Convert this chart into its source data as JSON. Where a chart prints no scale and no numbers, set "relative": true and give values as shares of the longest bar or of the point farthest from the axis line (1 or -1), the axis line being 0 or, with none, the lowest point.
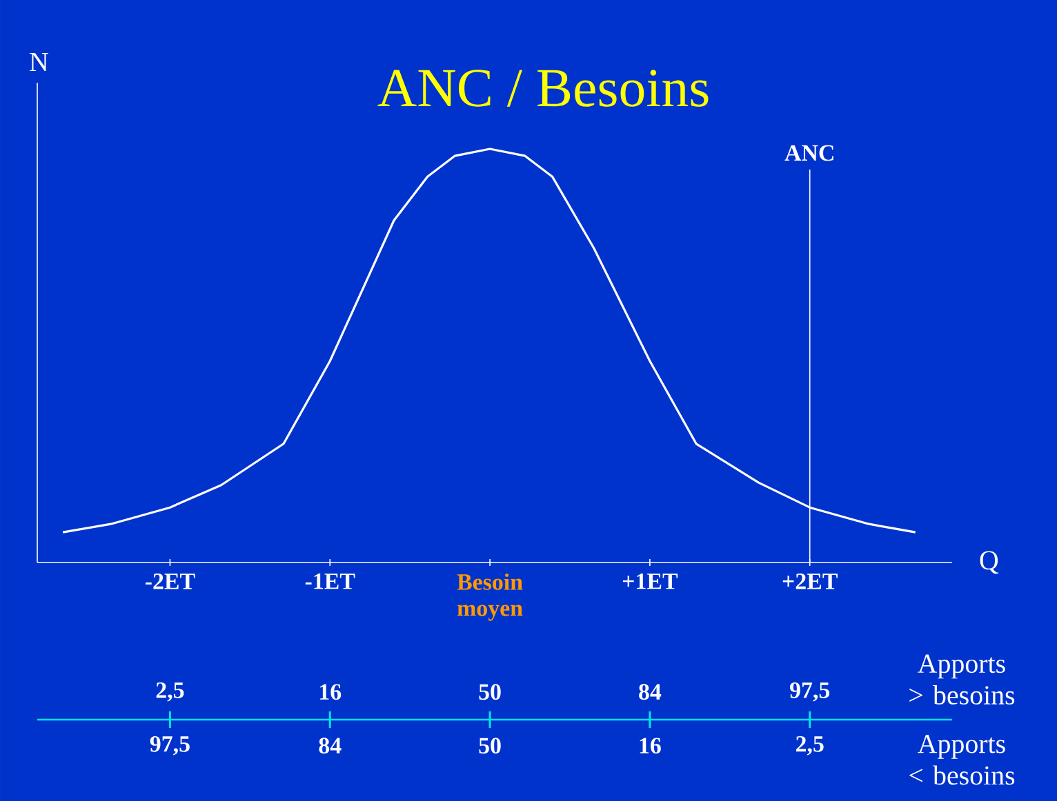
{
  "chart_data": {
    "type": "line",
    "title": "ANC / Besoins",
    "xlabel": "Q",
    "ylabel": "N",
    "relative": true,
    "x": [
      -2.67,
      -2.37,
      -2,
      -1.68,
      -1.29,
      -1,
      -0.6,
      -0.39,
      -0.22,
      0,
      0.22,
      0.39,
      0.65,
      1,
      1.29,
      1.68,
      2,
      2.37,
      2.66
    ],
    "series": [
      {
        "color": "#ffffff",
        "values": [
          0.073,
          0.093,
          0.133,
          0.187,
          0.287,
          0.487,
          0.827,
          0.933,
          0.983,
          1,
          0.983,
          0.933,
          0.76,
          0.487,
          0.287,
          0.193,
          0.133,
          0.093,
          0.073
        ]
      }
    ],
    "xlim": [
      -2.83,
      2.89
    ],
    "xticks": [
      {
        "value": -2,
        "label": "-2ET"
      },
      {
        "value": -1,
        "label": "-1ET"
      },
      {
        "value": 0,
        "label": "Besoin moyen"
      },
      {
        "value": 1,
        "label": "+1ET"
      },
      {
        "value": 2,
        "label": "+2ET"
      }
    ],
    "ref_lines": [
      {
        "axis": "x",
        "value": 2,
        "label": "ANC",
        "color": "#ffffff"
      }
    ],
    "annotations": [
      "Apports > besoins",
      "2,5",
      "16",
      "50",
      "84",
      "97,5",
      "Apports < besoins",
      "97,5",
      "84",
      "50",
      "16",
      "2,5"
    ]
  }
}
